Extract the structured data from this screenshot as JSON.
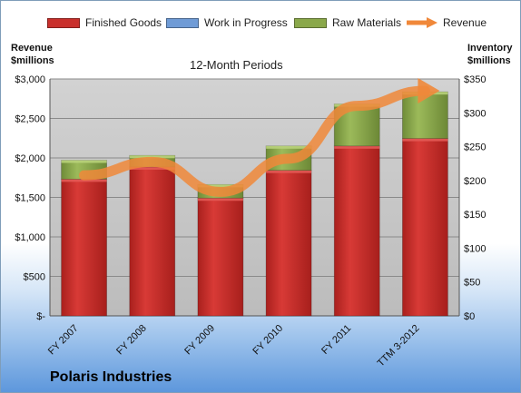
{
  "legend": {
    "finished": "Finished Goods",
    "wip": "Work in Progress",
    "raw": "Raw Materials",
    "revenue": "Revenue"
  },
  "left_axis_title": [
    "Revenue",
    "$millions"
  ],
  "right_axis_title": [
    "Inventory",
    "$millions"
  ],
  "company": "Polaris Industries",
  "colors": {
    "finished": "#c9302c",
    "wip": "#6f9bd6",
    "raw": "#8aa84a",
    "revenue": "#f0883a",
    "plot_bg": "#c8c8c8"
  },
  "chart_data": {
    "type": "bar",
    "title": "12-Month Periods",
    "categories": [
      "FY 2007",
      "FY 2008",
      "FY 2009",
      "FY 2010",
      "FY 2011",
      "TTM 3-2012"
    ],
    "series": [
      {
        "name": "Finished Goods",
        "axis": "right",
        "values": [
          202,
          220,
          174,
          215,
          251,
          262
        ]
      },
      {
        "name": "Work in Progress",
        "axis": "right",
        "values": [
          0,
          0,
          0,
          0,
          0,
          0
        ]
      },
      {
        "name": "Raw Materials",
        "axis": "right",
        "values": [
          28,
          17,
          20,
          36,
          62,
          69
        ]
      },
      {
        "name": "Revenue",
        "axis": "left",
        "type": "line",
        "values": [
          1780,
          1950,
          1570,
          1990,
          2660,
          2850
        ]
      }
    ],
    "stacked": true,
    "left_axis": {
      "ylim": [
        0,
        3000
      ],
      "ticks": [
        "$-",
        "$500",
        "$1,000",
        "$1,500",
        "$2,000",
        "$2,500",
        "$3,000"
      ]
    },
    "right_axis": {
      "ylim": [
        0,
        350
      ],
      "ticks": [
        "$0",
        "$50",
        "$100",
        "$150",
        "$200",
        "$250",
        "$300",
        "$350"
      ]
    },
    "grid": true,
    "legend_position": "top"
  }
}
